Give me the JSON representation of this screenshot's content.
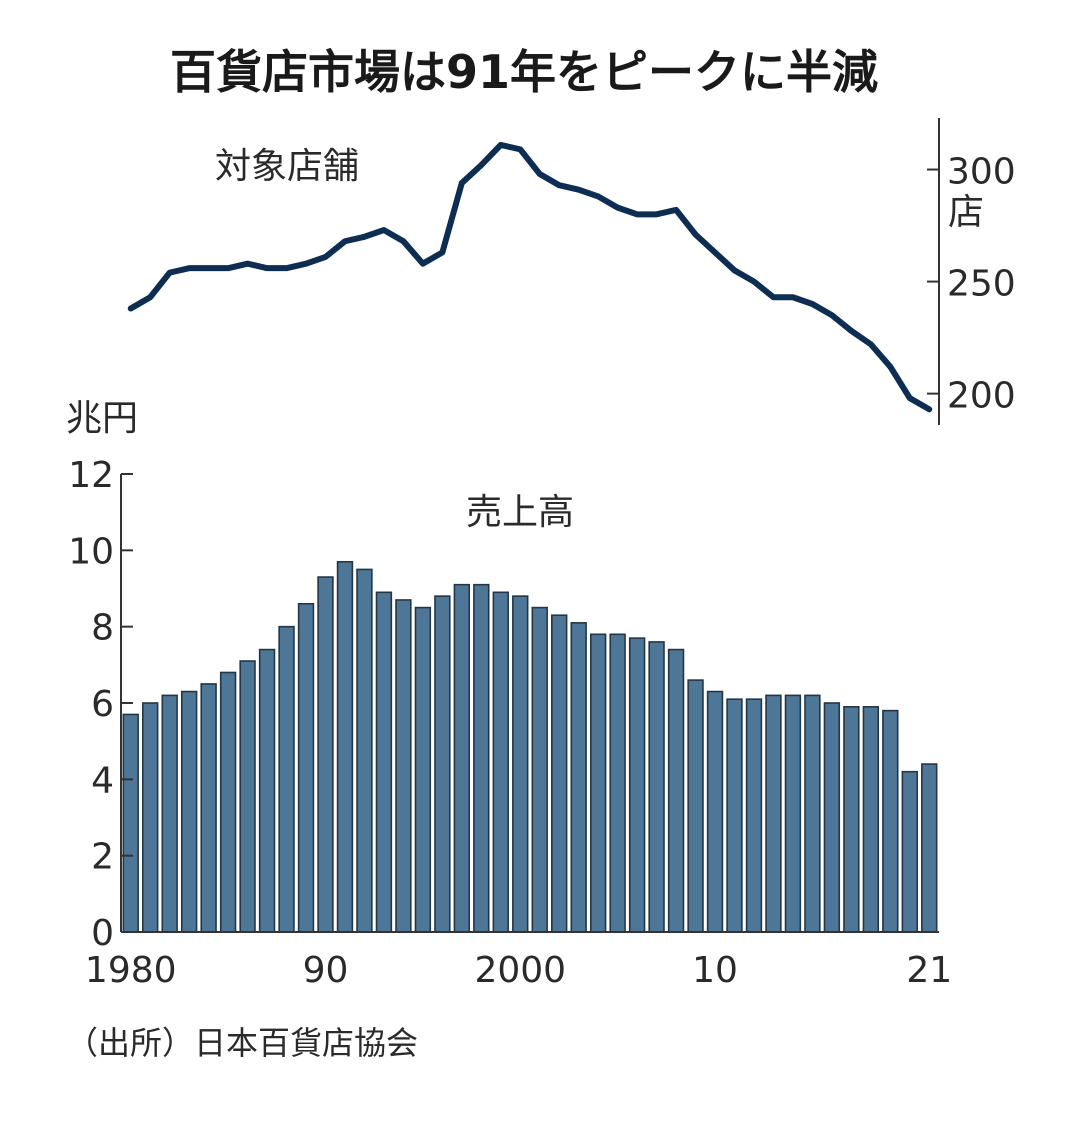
{
  "title": "百貨店市場は91年をピークに半減",
  "source": "（出所）日本百貨店協会",
  "chart_data": [
    {
      "type": "line",
      "title": "対象店舗",
      "unit": "店",
      "x": [
        1980,
        1981,
        1982,
        1983,
        1984,
        1985,
        1986,
        1987,
        1988,
        1989,
        1990,
        1991,
        1992,
        1993,
        1994,
        1995,
        1996,
        1997,
        1998,
        1999,
        2000,
        2001,
        2002,
        2003,
        2004,
        2005,
        2006,
        2007,
        2008,
        2009,
        2010,
        2011,
        2012,
        2013,
        2014,
        2015,
        2016,
        2017,
        2018,
        2019,
        2020,
        2021
      ],
      "series": [
        {
          "values": [
            238,
            243,
            254,
            256,
            256,
            256,
            258,
            256,
            256,
            258,
            261,
            268,
            270,
            273,
            268,
            258,
            263,
            294,
            302,
            311,
            309,
            298,
            293,
            291,
            288,
            283,
            280,
            280,
            282,
            271,
            263,
            255,
            250,
            243,
            243,
            240,
            235,
            228,
            222,
            212,
            198,
            193
          ]
        }
      ],
      "ylim": [
        186,
        323
      ],
      "yticks": [
        "200",
        "250",
        "300"
      ],
      "ytick_values": [
        200,
        250,
        300
      ]
    },
    {
      "type": "bar",
      "title": "売上高",
      "ylabel": "兆円",
      "x": [
        1980,
        1981,
        1982,
        1983,
        1984,
        1985,
        1986,
        1987,
        1988,
        1989,
        1990,
        1991,
        1992,
        1993,
        1994,
        1995,
        1996,
        1997,
        1998,
        1999,
        2000,
        2001,
        2002,
        2003,
        2004,
        2005,
        2006,
        2007,
        2008,
        2009,
        2010,
        2011,
        2012,
        2013,
        2014,
        2015,
        2016,
        2017,
        2018,
        2019,
        2020,
        2021
      ],
      "values": [
        5.7,
        6.0,
        6.2,
        6.3,
        6.5,
        6.8,
        7.1,
        7.4,
        8.0,
        8.6,
        9.3,
        9.7,
        9.5,
        8.9,
        8.7,
        8.5,
        8.8,
        9.1,
        9.1,
        8.9,
        8.8,
        8.5,
        8.3,
        8.1,
        7.8,
        7.8,
        7.7,
        7.6,
        7.4,
        6.6,
        6.3,
        6.1,
        6.1,
        6.2,
        6.2,
        6.2,
        6.0,
        5.9,
        5.9,
        5.8,
        4.2,
        4.4
      ],
      "ylim": [
        0,
        12
      ],
      "yticks": [
        "0",
        "2",
        "4",
        "6",
        "8",
        "10",
        "12"
      ],
      "ytick_values": [
        0,
        2,
        4,
        6,
        8,
        10,
        12
      ],
      "xticks": [
        "1980",
        "90",
        "2000",
        "10",
        "21"
      ],
      "xtick_values": [
        1980,
        1990,
        2000,
        2010,
        2021
      ],
      "bar_color": "#4e7797",
      "bar_edge_color": "#243646"
    }
  ],
  "colors": {
    "line": "#0e2d52",
    "axis": "#333333",
    "text": "#2a2a2a"
  }
}
